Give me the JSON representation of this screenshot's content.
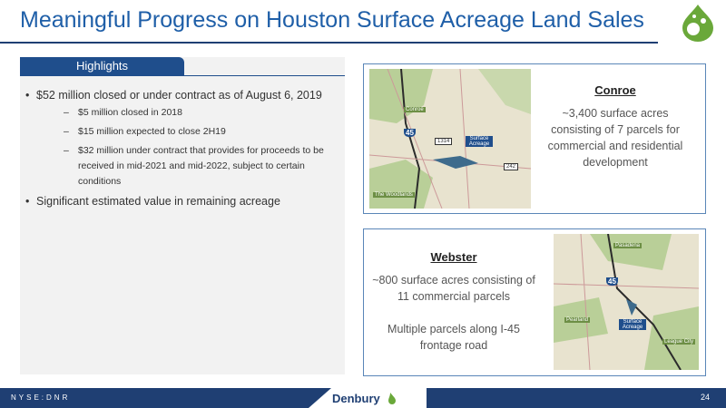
{
  "header": {
    "title": "Meaningful Progress on Houston Surface Acreage Land Sales"
  },
  "highlights": {
    "tab": "Highlights",
    "bullets": [
      {
        "text": "$52 million closed or under contract as of August 6, 2019",
        "sub": [
          "$5 million closed in 2018",
          "$15 million expected to close 2H19",
          "$32 million under contract that provides for proceeds to be received in mid-2021 and mid-2022, subject to certain conditions"
        ]
      },
      {
        "text": "Significant estimated value in remaining acreage"
      }
    ]
  },
  "conroe": {
    "heading": "Conroe",
    "text": "~3,400 surface acres consisting of 7 parcels for commercial and residential development",
    "map_labels": [
      "Conroe",
      "45",
      "1314",
      "Surface Acreage",
      "242",
      "The Woodlands"
    ]
  },
  "webster": {
    "heading": "Webster",
    "text": [
      "~800 surface acres consisting of 11 commercial parcels",
      "Multiple parcels along I-45 frontage road"
    ],
    "map_labels": [
      "Pasadena",
      "45",
      "Pearland",
      "Surface Acreage",
      "League City"
    ]
  },
  "footer": {
    "ticker": "NYSE:DNR",
    "company": "Denbury",
    "page": "24"
  }
}
